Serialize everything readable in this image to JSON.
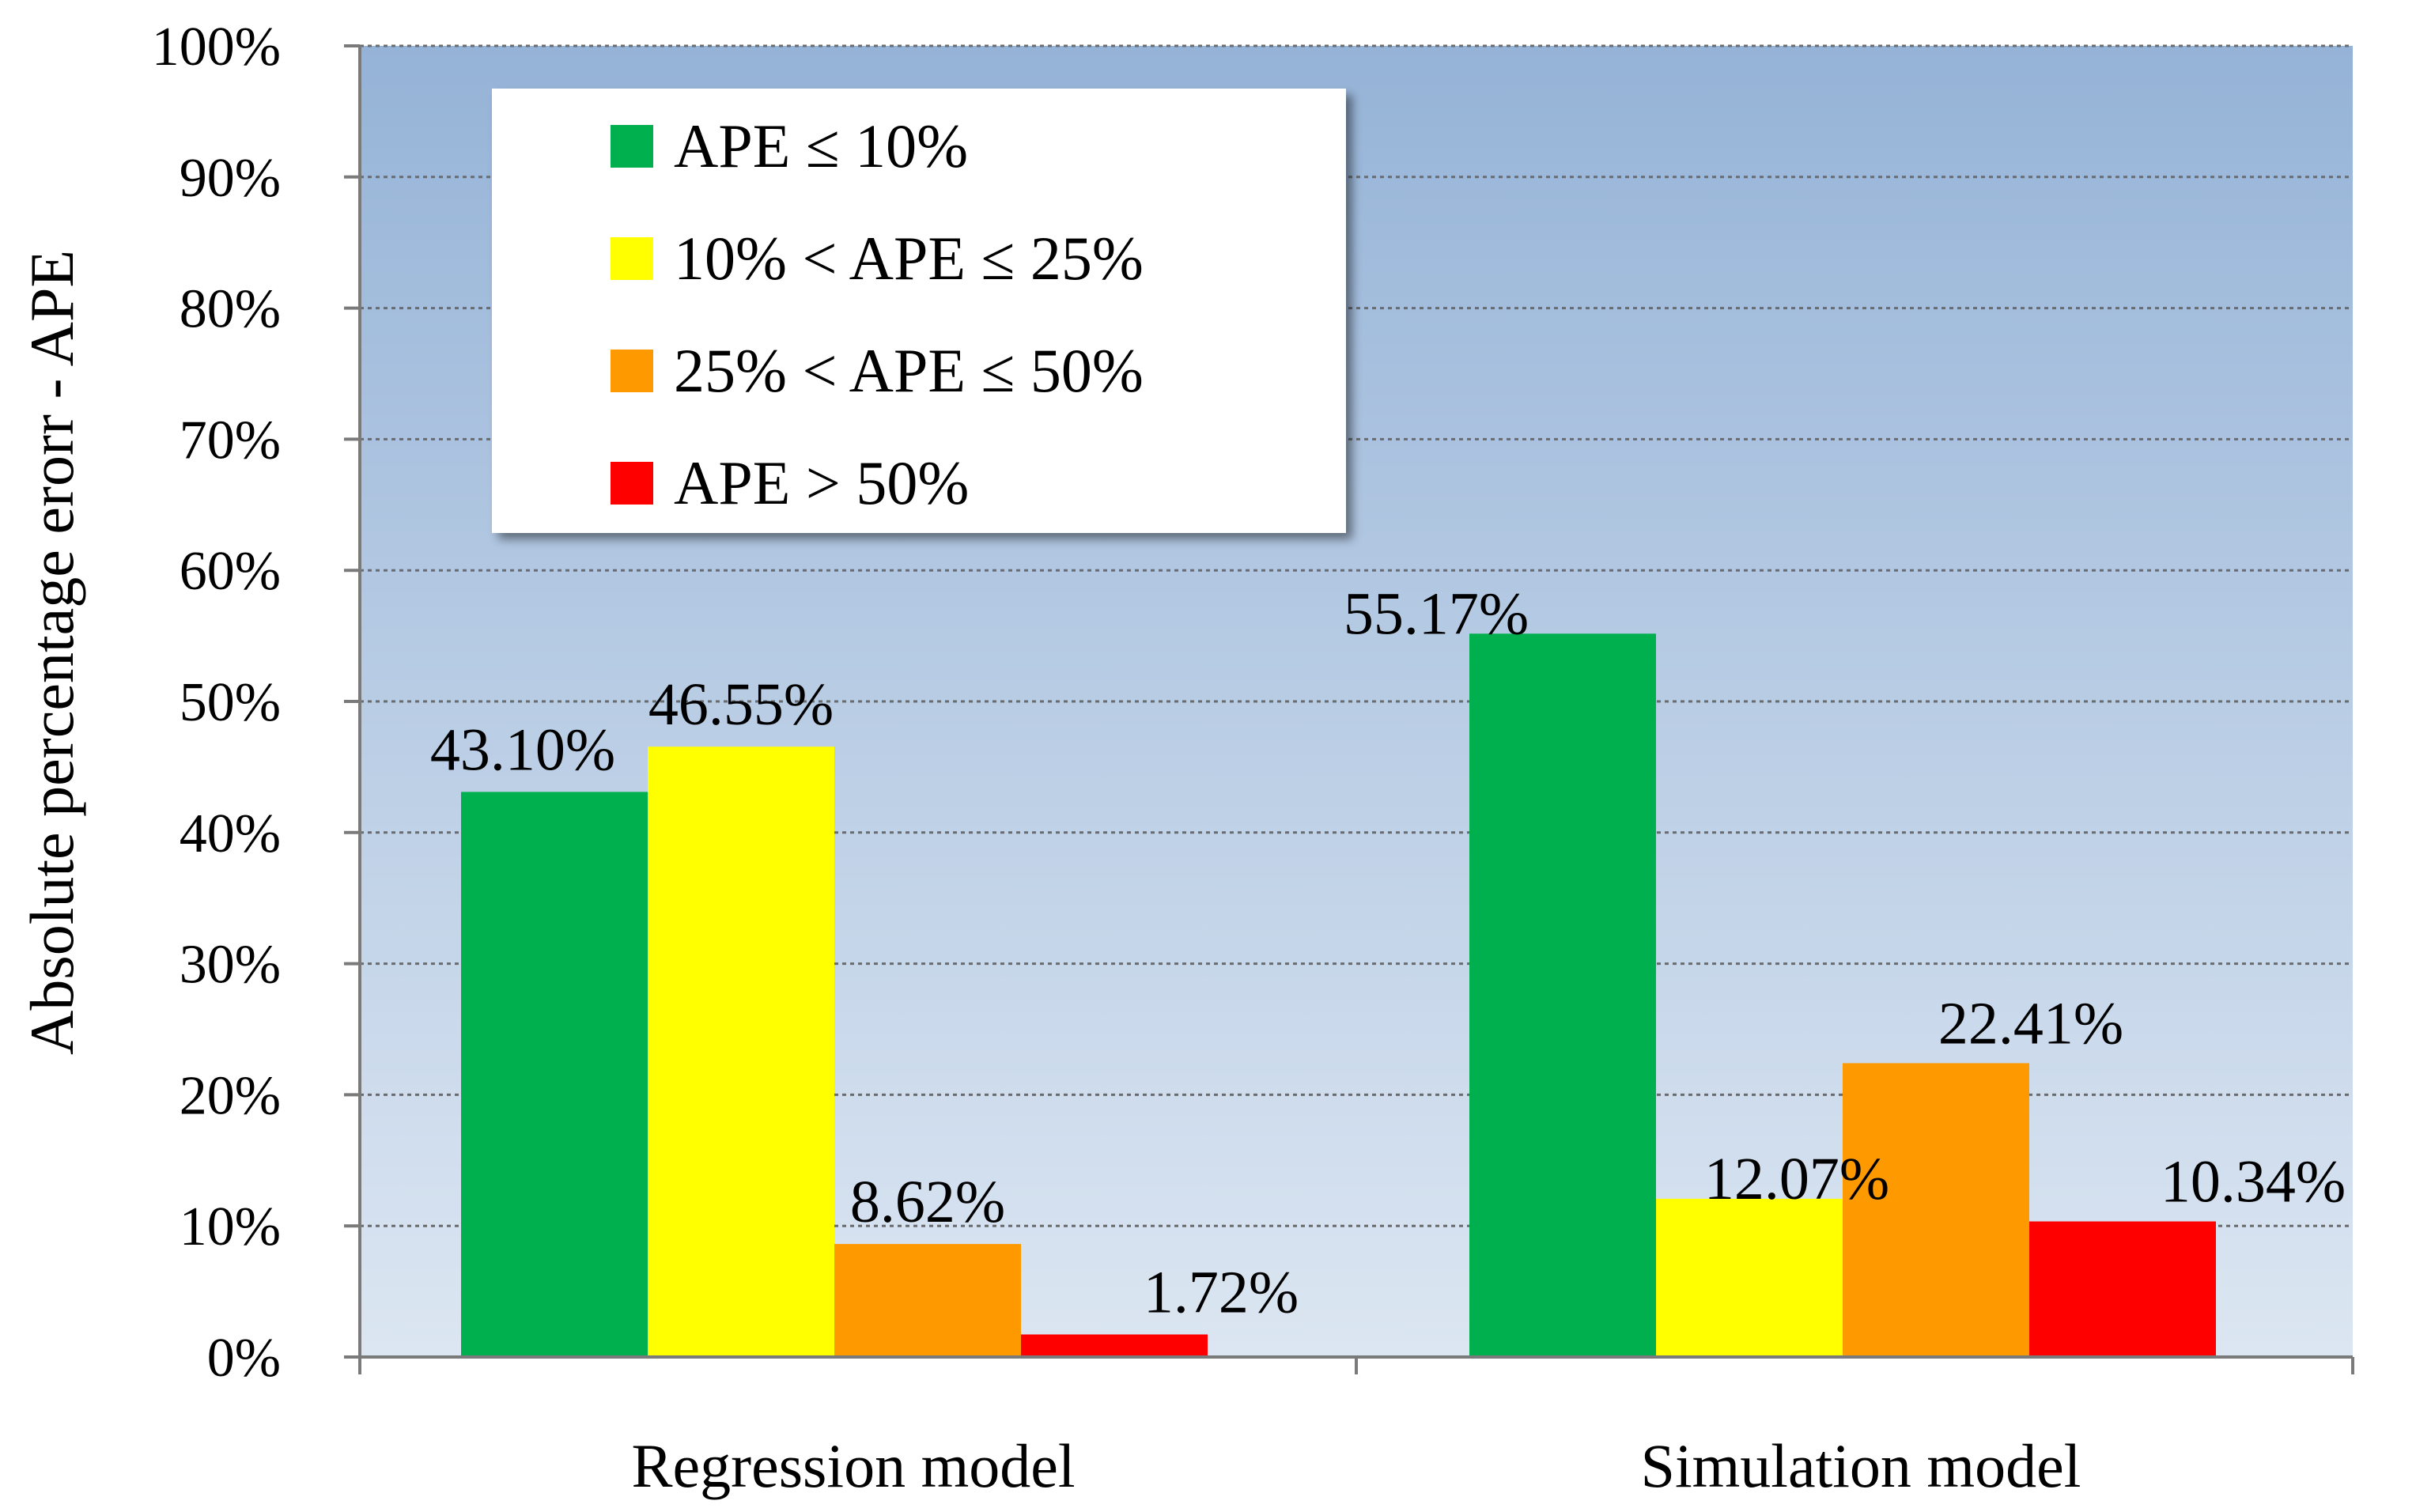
{
  "chart_data": {
    "type": "bar",
    "title": "",
    "xlabel": "",
    "ylabel": "Absolute percentage erorr  - APE",
    "ylim": [
      0,
      100
    ],
    "y_ticks": [
      "0%",
      "10%",
      "20%",
      "30%",
      "40%",
      "50%",
      "60%",
      "70%",
      "80%",
      "90%",
      "100%"
    ],
    "categories": [
      "Regression model",
      "Simulation model"
    ],
    "grid": true,
    "legend_position": "top-left",
    "series": [
      {
        "name": "APE ≤ 10%",
        "color": "#00b04f",
        "values": [
          43.1,
          55.17
        ],
        "labels": [
          "43.10%",
          "55.17%"
        ]
      },
      {
        "name": "10% < APE ≤ 25%",
        "color": "#ffff00",
        "values": [
          46.55,
          12.07
        ],
        "labels": [
          "46.55%",
          "12.07%"
        ]
      },
      {
        "name": "25% < APE ≤ 50%",
        "color": "#ff9900",
        "values": [
          8.62,
          22.41
        ],
        "labels": [
          "8.62%",
          "22.41%"
        ]
      },
      {
        "name": "APE > 50%",
        "color": "#ff0000",
        "values": [
          1.72,
          10.34
        ],
        "labels": [
          "1.72%",
          "10.34%"
        ]
      }
    ],
    "background_gradient": [
      "#95b3d7",
      "#dce6f2"
    ]
  }
}
